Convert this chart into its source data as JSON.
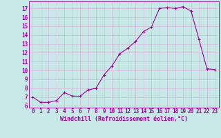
{
  "x": [
    0,
    1,
    2,
    3,
    4,
    5,
    6,
    7,
    8,
    9,
    10,
    11,
    12,
    13,
    14,
    15,
    16,
    17,
    18,
    19,
    20,
    21,
    22,
    23
  ],
  "y": [
    7.0,
    6.4,
    6.4,
    6.6,
    7.5,
    7.1,
    7.1,
    7.8,
    8.0,
    9.5,
    10.5,
    11.9,
    12.5,
    13.3,
    14.4,
    14.9,
    17.0,
    17.1,
    17.0,
    17.2,
    16.7,
    13.5,
    10.2,
    10.1
  ],
  "line_color": "#990099",
  "marker": "+",
  "bg_color": "#c8e8e8",
  "grid_color": "#ddbbdd",
  "xlabel": "Windchill (Refroidissement éolien,°C)",
  "xlabel_color": "#990099",
  "tick_color": "#990099",
  "ylabel_ticks": [
    6,
    7,
    8,
    9,
    10,
    11,
    12,
    13,
    14,
    15,
    16,
    17
  ],
  "xlim": [
    -0.5,
    23.5
  ],
  "ylim": [
    5.8,
    17.8
  ],
  "font_name": "monospace",
  "tick_fontsize": 5.5,
  "xlabel_fontsize": 6.0,
  "linewidth": 0.8,
  "markersize": 3,
  "markeredgewidth": 0.8
}
